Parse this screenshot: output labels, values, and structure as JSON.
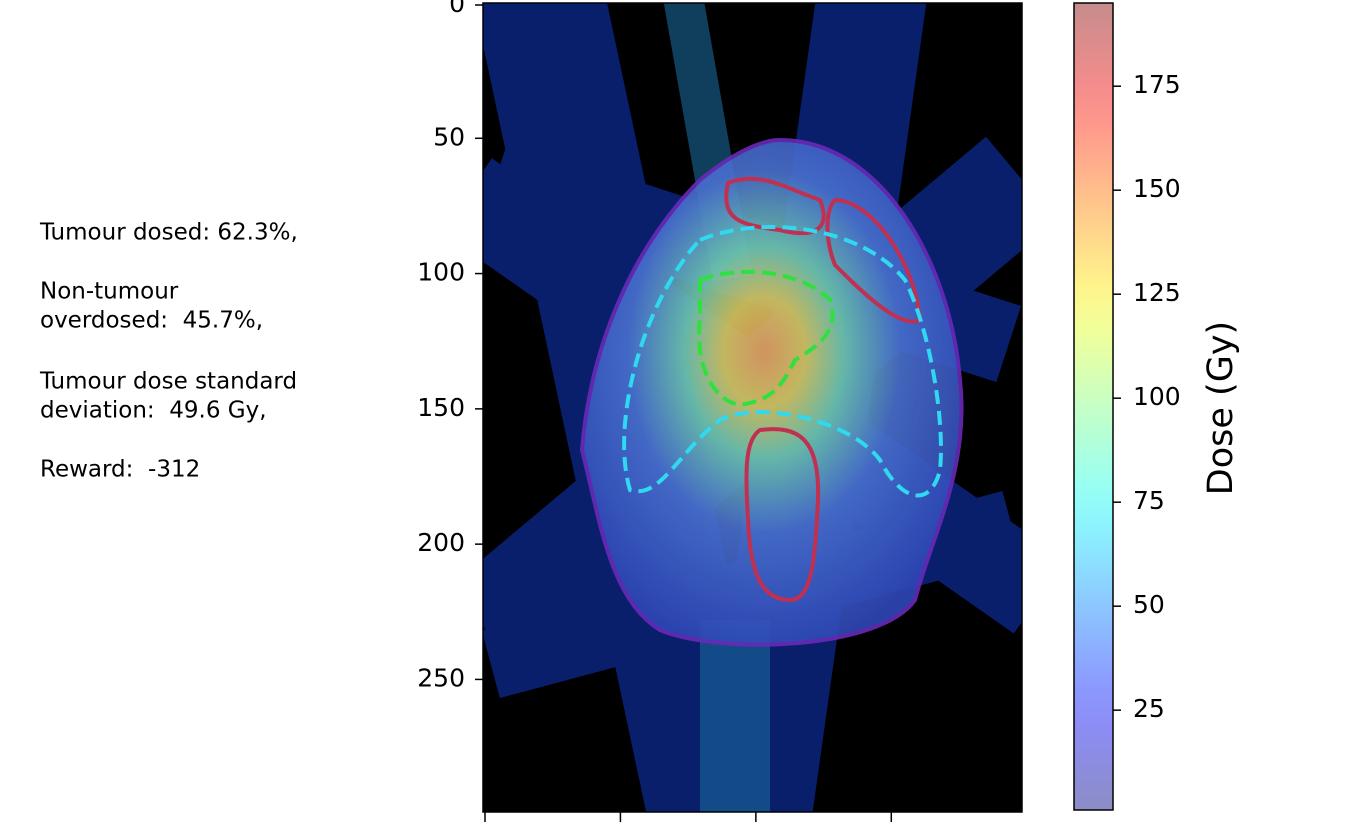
{
  "chart_data": {
    "type": "image",
    "annotations": [
      [
        "Tumour dosed: 62.3%,"
      ],
      [
        "Non-tumour",
        "overdosed:  45.7%,"
      ],
      [
        "Tumour dose standard",
        "deviation:  49.6 Gy,"
      ],
      [
        "Reward:  -312"
      ]
    ],
    "xlim": [
      0,
      199
    ],
    "xticks": [
      0,
      50,
      100,
      150
    ],
    "ylim": [
      0,
      299
    ],
    "yticks": [
      0,
      50,
      100,
      150,
      200,
      250
    ],
    "colorbar": {
      "label": "Dose (Gy)",
      "colormap": "jet",
      "alpha": 0.45,
      "lim": [
        1,
        195
      ],
      "ticks": [
        25,
        50,
        75,
        100,
        125,
        150,
        175
      ]
    }
  }
}
